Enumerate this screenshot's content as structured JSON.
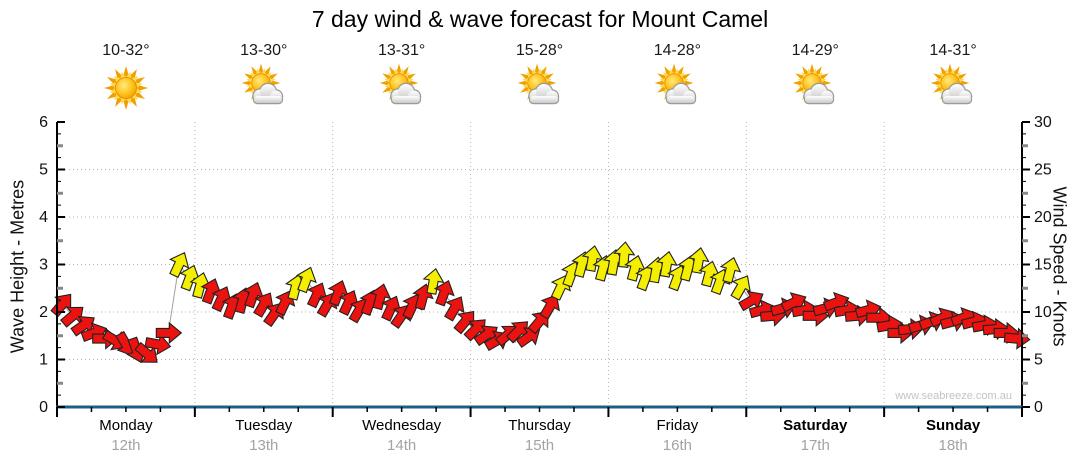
{
  "page": {
    "title": "7 day wind & wave forecast for Mount Camel",
    "watermark": "www.seabreeze.com.au"
  },
  "chart_data": {
    "type": "scatter",
    "title": "7 day wind & wave forecast for Mount Camel",
    "description": "Wind speed arrow track (arrow direction = wind direction), ~2-hour intervals over 7 days",
    "left_axis": {
      "label": "Wave Height - Metres",
      "min": 0,
      "max": 6,
      "major_step": 1
    },
    "right_axis": {
      "label": "Wind Speed - Knots",
      "min": 0,
      "max": 30,
      "major_step": 5
    },
    "grid": "dotted horizontal each metre / 5 knots, dotted vertical at day boundaries",
    "days": [
      {
        "name": "Monday",
        "date": "12th",
        "temp": "10-32°",
        "icon": "sunny",
        "bold": false
      },
      {
        "name": "Tuesday",
        "date": "13th",
        "temp": "13-30°",
        "icon": "partly-cloudy",
        "bold": false
      },
      {
        "name": "Wednesday",
        "date": "14th",
        "temp": "13-31°",
        "icon": "partly-cloudy",
        "bold": false
      },
      {
        "name": "Thursday",
        "date": "15th",
        "temp": "15-28°",
        "icon": "partly-cloudy",
        "bold": false
      },
      {
        "name": "Friday",
        "date": "16th",
        "temp": "14-28°",
        "icon": "partly-cloudy",
        "bold": false
      },
      {
        "name": "Saturday",
        "date": "17th",
        "temp": "14-29°",
        "icon": "partly-cloudy",
        "bold": true
      },
      {
        "name": "Sunday",
        "date": "18th",
        "temp": "14-31°",
        "icon": "partly-cloudy",
        "bold": true
      }
    ],
    "series": [
      {
        "name": "Wind Speed",
        "unit": "knots",
        "points_per_day": 13,
        "arrow_color_rule": "red below 12.5 kn, yellow 12.5-20 kn",
        "points_v_knots_dir_deg": [
          [
            10.8,
            40
          ],
          [
            9.6,
            50
          ],
          [
            8.6,
            55
          ],
          [
            7.8,
            70
          ],
          [
            7.2,
            90
          ],
          [
            7.0,
            120
          ],
          [
            6.6,
            150
          ],
          [
            6.0,
            160
          ],
          [
            5.6,
            130
          ],
          [
            6.6,
            100
          ],
          [
            7.8,
            90
          ],
          [
            15.0,
            25
          ],
          [
            13.6,
            20
          ],
          [
            12.8,
            15
          ],
          [
            12.2,
            20
          ],
          [
            11.4,
            25
          ],
          [
            10.6,
            20
          ],
          [
            11.2,
            15
          ],
          [
            11.8,
            20
          ],
          [
            10.8,
            30
          ],
          [
            9.8,
            35
          ],
          [
            11.0,
            25
          ],
          [
            12.6,
            15
          ],
          [
            13.4,
            20
          ],
          [
            11.8,
            25
          ],
          [
            10.8,
            30
          ],
          [
            12.0,
            20
          ],
          [
            11.0,
            25
          ],
          [
            10.2,
            30
          ],
          [
            11.0,
            20
          ],
          [
            11.6,
            15
          ],
          [
            10.4,
            25
          ],
          [
            9.6,
            35
          ],
          [
            10.6,
            25
          ],
          [
            11.6,
            15
          ],
          [
            13.2,
            10
          ],
          [
            12.0,
            20
          ],
          [
            10.4,
            30
          ],
          [
            9.0,
            40
          ],
          [
            8.2,
            45
          ],
          [
            7.6,
            55
          ],
          [
            7.0,
            60
          ],
          [
            7.6,
            50
          ],
          [
            8.0,
            45
          ],
          [
            7.4,
            55
          ],
          [
            9.0,
            40
          ],
          [
            10.6,
            30
          ],
          [
            12.6,
            25
          ],
          [
            14.0,
            20
          ],
          [
            15.0,
            15
          ],
          [
            15.6,
            10
          ],
          [
            14.6,
            15
          ],
          [
            15.2,
            10
          ],
          [
            16.0,
            5
          ],
          [
            14.6,
            15
          ],
          [
            13.6,
            20
          ],
          [
            14.4,
            10
          ],
          [
            15.0,
            10
          ],
          [
            13.6,
            20
          ],
          [
            14.6,
            15
          ],
          [
            15.4,
            10
          ],
          [
            14.0,
            15
          ],
          [
            13.2,
            20
          ],
          [
            14.4,
            15
          ],
          [
            12.6,
            30
          ],
          [
            11.2,
            60
          ],
          [
            10.2,
            75
          ],
          [
            9.6,
            85
          ],
          [
            10.4,
            75
          ],
          [
            11.0,
            65
          ],
          [
            10.2,
            80
          ],
          [
            9.6,
            90
          ],
          [
            10.4,
            75
          ],
          [
            11.0,
            70
          ],
          [
            10.2,
            80
          ],
          [
            9.6,
            85
          ],
          [
            10.2,
            75
          ],
          [
            9.4,
            90
          ],
          [
            8.6,
            80
          ],
          [
            7.8,
            90
          ],
          [
            8.2,
            85
          ],
          [
            8.6,
            75
          ],
          [
            9.0,
            70
          ],
          [
            9.4,
            65
          ],
          [
            9.0,
            75
          ],
          [
            9.4,
            70
          ],
          [
            9.0,
            75
          ],
          [
            8.6,
            80
          ],
          [
            8.2,
            85
          ],
          [
            7.8,
            90
          ],
          [
            7.2,
            95
          ]
        ]
      }
    ],
    "colors": {
      "arrow_low": "#ea1310",
      "arrow_mid": "#f4ee00",
      "arrow_outline": "#222222",
      "axis_line_bottom": "#1c5f86",
      "axis_line_side": "#000000",
      "grid": "#b4b4b4",
      "track_line": "#a0a0a0",
      "tick_minor": "#888888",
      "date_text": "#a3a3a3",
      "watermark_text": "#c3c3c3"
    },
    "yellow_threshold_knots": 12.5
  }
}
